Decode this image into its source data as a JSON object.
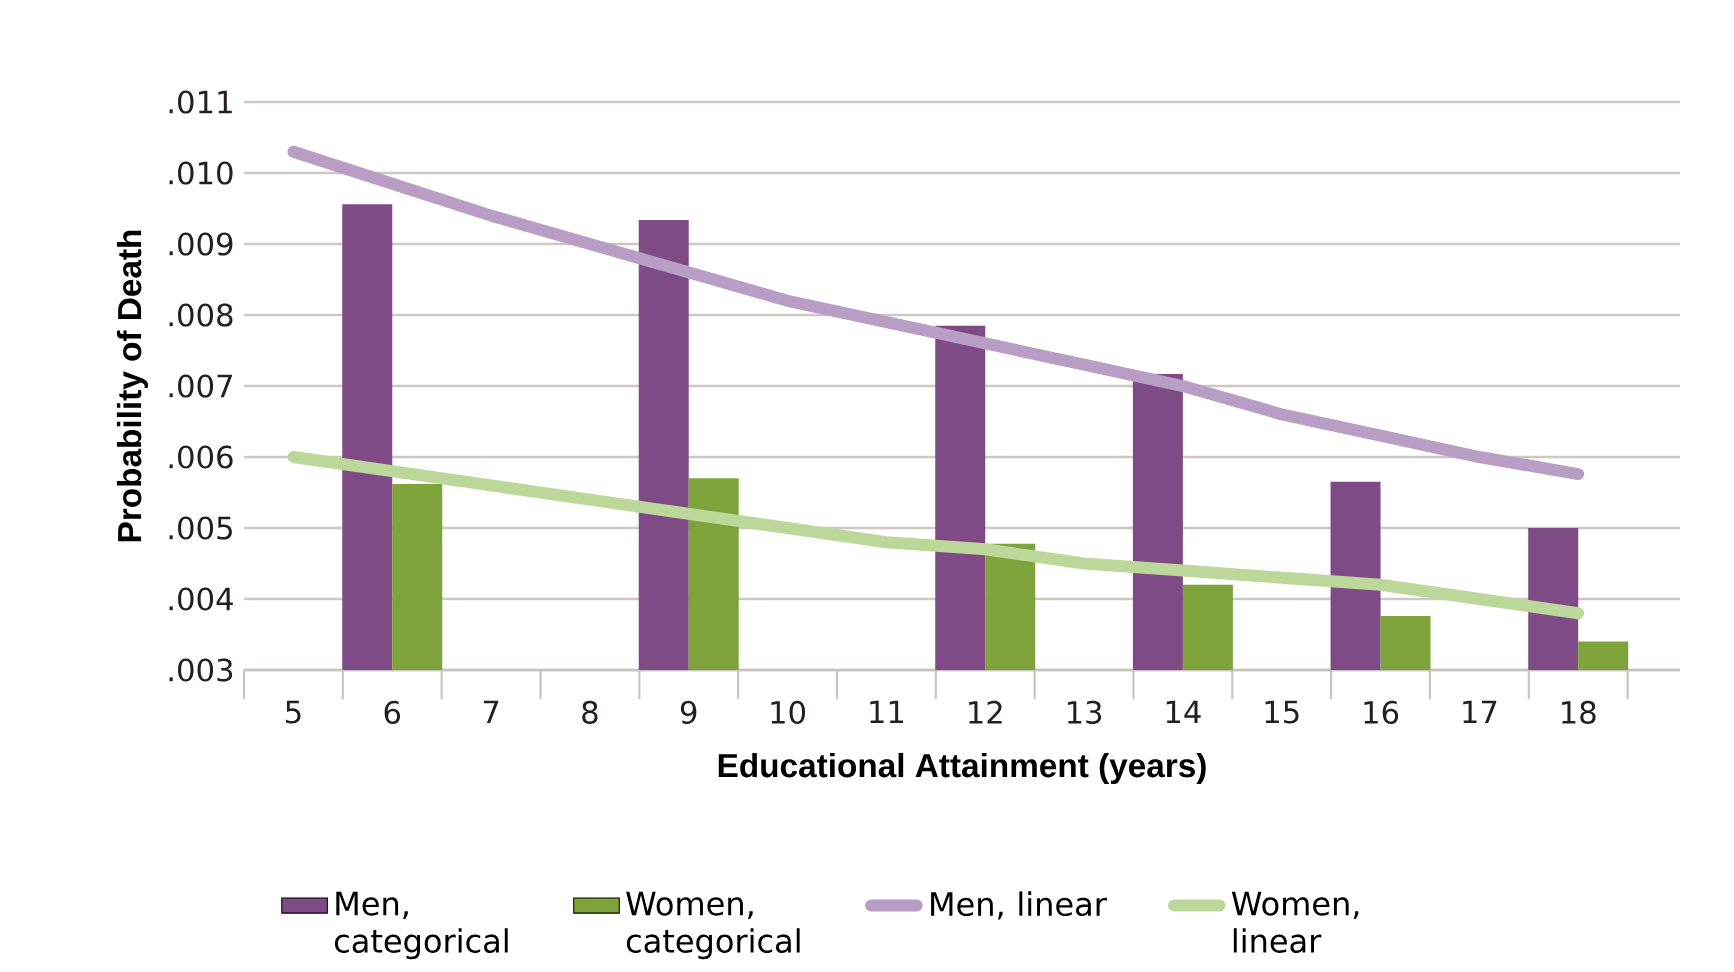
{
  "chart_data": {
    "type": "bar",
    "xlabel": "Educational Attainment (years)",
    "ylabel": "Probability of Death",
    "categories": [
      "5",
      "6",
      "7",
      "8",
      "9",
      "10",
      "11",
      "12",
      "13",
      "14",
      "15",
      "16",
      "17",
      "18"
    ],
    "series": [
      {
        "name": "Men, categorical",
        "color": "#7f4b86",
        "values": [
          null,
          0.00956,
          null,
          null,
          0.00934,
          null,
          null,
          0.00785,
          null,
          0.00717,
          null,
          0.00565,
          null,
          0.005
        ]
      },
      {
        "name": "Women, categorical",
        "color": "#7ea33a",
        "values": [
          null,
          0.00562,
          null,
          null,
          0.0057,
          null,
          null,
          0.00478,
          null,
          0.0042,
          null,
          0.00376,
          null,
          0.0034
        ]
      },
      {
        "name": "Men, linear",
        "type": "line",
        "color": "#b89ec4",
        "values": [
          0.0103,
          0.00985,
          0.0094,
          0.009,
          0.0086,
          0.0082,
          0.0079,
          0.0076,
          0.0073,
          0.007,
          0.0066,
          0.0063,
          0.006,
          0.00576
        ]
      },
      {
        "name": "Women, linear",
        "type": "line",
        "color": "#bcd79a",
        "values": [
          0.006,
          0.0058,
          0.0056,
          0.0054,
          0.0052,
          0.005,
          0.0048,
          0.0047,
          0.0045,
          0.0044,
          0.0043,
          0.0042,
          0.004,
          0.0038
        ]
      }
    ],
    "ylim": [
      0.003,
      0.011
    ],
    "yticks": [
      {
        "value": 0.003,
        "label": ".003"
      },
      {
        "value": 0.004,
        "label": ".004"
      },
      {
        "value": 0.005,
        "label": ".005"
      },
      {
        "value": 0.006,
        "label": ".006"
      },
      {
        "value": 0.007,
        "label": ".007"
      },
      {
        "value": 0.008,
        "label": ".008"
      },
      {
        "value": 0.009,
        "label": ".009"
      },
      {
        "value": 0.01,
        "label": ".010"
      },
      {
        "value": 0.011,
        "label": ".011"
      }
    ],
    "grid": "y",
    "legend": "bottom"
  }
}
